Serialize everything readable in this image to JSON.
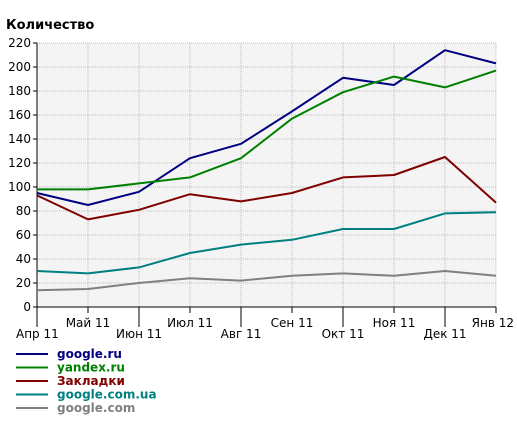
{
  "chart_data": {
    "type": "line",
    "ylabel": "Количество",
    "ylim": [
      0,
      220
    ],
    "ytick_step": 20,
    "grid": true,
    "legend_placement": "bottom-left",
    "background": "#f4f4f4",
    "x": [
      "Апр 11",
      "Май 11",
      "Июн 11",
      "Июл 11",
      "Авг 11",
      "Сен 11",
      "Окт 11",
      "Ноя 11",
      "Дек 11",
      "Янв 12"
    ],
    "series": [
      {
        "name": "google.ru",
        "color": "#000080",
        "values": [
          95,
          85,
          96,
          124,
          136,
          163,
          191,
          185,
          214,
          203
        ]
      },
      {
        "name": "yandex.ru",
        "color": "#008000",
        "values": [
          98,
          98,
          103,
          108,
          124,
          157,
          179,
          192,
          183,
          197
        ]
      },
      {
        "name": "Закладки",
        "color": "#800000",
        "values": [
          93,
          73,
          81,
          94,
          88,
          95,
          108,
          110,
          125,
          87
        ]
      },
      {
        "name": "google.com.ua",
        "color": "#008080",
        "values": [
          30,
          28,
          33,
          45,
          52,
          56,
          65,
          65,
          78,
          79
        ]
      },
      {
        "name": "google.com",
        "color": "#808080",
        "values": [
          14,
          15,
          20,
          24,
          22,
          26,
          28,
          26,
          30,
          26
        ]
      }
    ]
  }
}
